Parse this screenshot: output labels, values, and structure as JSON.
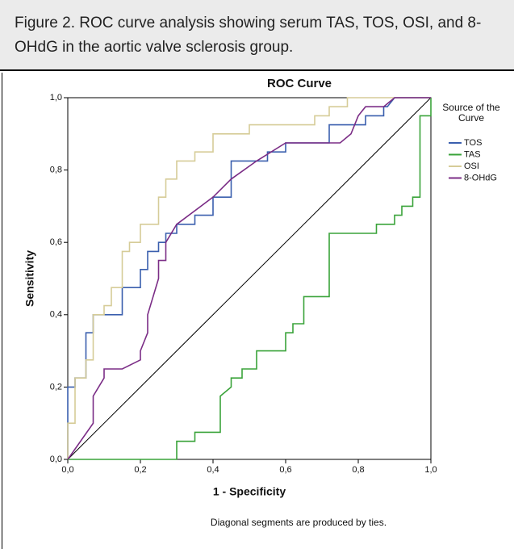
{
  "caption": "Figure 2.  ROC curve analysis showing serum TAS, TOS, OSI, and 8-OHdG in the aortic valve sclerosis group.",
  "chart_data": {
    "type": "line",
    "title": "ROC Curve",
    "x_label": "1 - Specificity",
    "y_label": "Sensitivity",
    "legend_title": "Source of the Curve",
    "footnote": "Diagonal segments are produced by ties.",
    "xlim": [
      0,
      1
    ],
    "ylim": [
      0,
      1
    ],
    "xticks": [
      {
        "value": 0,
        "label": "0,0"
      },
      {
        "value": 0.2,
        "label": "0,2"
      },
      {
        "value": 0.4,
        "label": "0,4"
      },
      {
        "value": 0.6,
        "label": "0,6"
      },
      {
        "value": 0.8,
        "label": "0,8"
      },
      {
        "value": 1,
        "label": "1,0"
      }
    ],
    "yticks": [
      {
        "value": 0,
        "label": "0,0"
      },
      {
        "value": 0.2,
        "label": "0,2"
      },
      {
        "value": 0.4,
        "label": "0,4"
      },
      {
        "value": 0.6,
        "label": "0,6"
      },
      {
        "value": 0.8,
        "label": "0,8"
      },
      {
        "value": 1,
        "label": "1,0"
      }
    ],
    "reference_line": true,
    "series": [
      {
        "name": "TOS",
        "color": "#3a5fae",
        "x": [
          0,
          0,
          0.02,
          0.02,
          0.05,
          0.05,
          0.07,
          0.07,
          0.15,
          0.15,
          0.2,
          0.2,
          0.22,
          0.22,
          0.25,
          0.25,
          0.27,
          0.27,
          0.3,
          0.3,
          0.35,
          0.35,
          0.4,
          0.4,
          0.45,
          0.45,
          0.55,
          0.55,
          0.6,
          0.6,
          0.72,
          0.72,
          0.82,
          0.82,
          0.87,
          0.87,
          0.88,
          0.9,
          1
        ],
        "values": [
          0,
          0.2,
          0.2,
          0.225,
          0.225,
          0.35,
          0.35,
          0.4,
          0.4,
          0.475,
          0.475,
          0.525,
          0.525,
          0.575,
          0.575,
          0.6,
          0.6,
          0.625,
          0.625,
          0.65,
          0.65,
          0.675,
          0.675,
          0.725,
          0.725,
          0.825,
          0.825,
          0.85,
          0.85,
          0.875,
          0.875,
          0.925,
          0.925,
          0.95,
          0.95,
          0.975,
          0.975,
          1,
          1
        ]
      },
      {
        "name": "TAS",
        "color": "#3aa33a",
        "x": [
          0,
          0.3,
          0.3,
          0.35,
          0.35,
          0.42,
          0.42,
          0.45,
          0.45,
          0.48,
          0.48,
          0.52,
          0.52,
          0.6,
          0.6,
          0.62,
          0.62,
          0.65,
          0.65,
          0.72,
          0.72,
          0.85,
          0.85,
          0.9,
          0.9,
          0.92,
          0.92,
          0.95,
          0.95,
          0.97,
          0.97,
          1,
          1
        ],
        "values": [
          0,
          0,
          0.05,
          0.05,
          0.075,
          0.075,
          0.175,
          0.2,
          0.225,
          0.225,
          0.25,
          0.25,
          0.3,
          0.3,
          0.35,
          0.35,
          0.375,
          0.375,
          0.45,
          0.45,
          0.625,
          0.625,
          0.65,
          0.65,
          0.675,
          0.675,
          0.7,
          0.7,
          0.725,
          0.725,
          0.95,
          0.95,
          1
        ]
      },
      {
        "name": "OSI",
        "color": "#d6cc98",
        "x": [
          0,
          0,
          0.02,
          0.02,
          0.05,
          0.05,
          0.07,
          0.07,
          0.1,
          0.1,
          0.12,
          0.12,
          0.15,
          0.15,
          0.17,
          0.17,
          0.2,
          0.2,
          0.25,
          0.25,
          0.27,
          0.27,
          0.3,
          0.3,
          0.35,
          0.35,
          0.4,
          0.4,
          0.5,
          0.5,
          0.68,
          0.68,
          0.72,
          0.72,
          0.77,
          0.77,
          1
        ],
        "values": [
          0,
          0.1,
          0.1,
          0.225,
          0.225,
          0.275,
          0.275,
          0.4,
          0.4,
          0.425,
          0.425,
          0.475,
          0.475,
          0.575,
          0.575,
          0.6,
          0.6,
          0.65,
          0.65,
          0.725,
          0.725,
          0.775,
          0.775,
          0.825,
          0.825,
          0.85,
          0.85,
          0.9,
          0.9,
          0.925,
          0.925,
          0.95,
          0.95,
          0.975,
          0.975,
          1,
          1
        ]
      },
      {
        "name": "8-OHdG",
        "color": "#7b2d86",
        "x": [
          0,
          0.07,
          0.07,
          0.1,
          0.1,
          0.15,
          0.2,
          0.2,
          0.22,
          0.22,
          0.25,
          0.25,
          0.27,
          0.27,
          0.3,
          0.4,
          0.45,
          0.52,
          0.6,
          0.75,
          0.78,
          0.8,
          0.82,
          0.87,
          0.9,
          1
        ],
        "values": [
          0,
          0.1,
          0.175,
          0.225,
          0.25,
          0.25,
          0.275,
          0.3,
          0.35,
          0.4,
          0.5,
          0.55,
          0.55,
          0.6,
          0.65,
          0.725,
          0.775,
          0.825,
          0.875,
          0.875,
          0.9,
          0.95,
          0.975,
          0.975,
          1,
          1
        ]
      }
    ]
  }
}
